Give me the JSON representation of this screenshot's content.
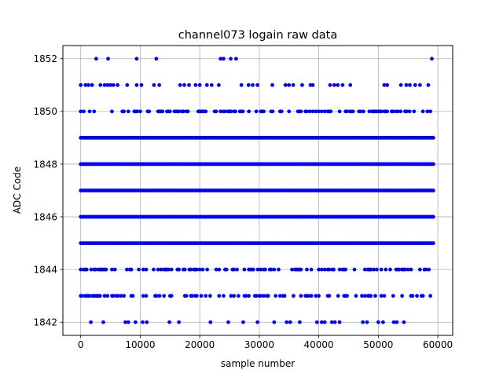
{
  "chart_data": {
    "type": "scatter",
    "title": "channel073 logain raw data",
    "xlabel": "sample number",
    "ylabel": "ADC Code",
    "xlim": [
      -3000,
      62500
    ],
    "ylim": [
      1841.5,
      1852.5
    ],
    "xticks": [
      0,
      10000,
      20000,
      30000,
      40000,
      50000,
      60000
    ],
    "yticks": [
      1842,
      1844,
      1846,
      1848,
      1850,
      1852
    ],
    "grid": true,
    "marker_color": "#0000ff",
    "series": [
      {
        "dense_levels": [
          {
            "y": 1850,
            "x_range": [
              0,
              59400
            ],
            "density": 0.45
          },
          {
            "y": 1849,
            "x_range": [
              0,
              59400
            ],
            "density": 1.0
          },
          {
            "y": 1848,
            "x_range": [
              0,
              59400
            ],
            "density": 1.0
          },
          {
            "y": 1847,
            "x_range": [
              0,
              59400
            ],
            "density": 1.0
          },
          {
            "y": 1846,
            "x_range": [
              0,
              59400
            ],
            "density": 1.0
          },
          {
            "y": 1845,
            "x_range": [
              0,
              59400
            ],
            "density": 1.0
          },
          {
            "y": 1844,
            "x_range": [
              0,
              59400
            ],
            "density": 0.5
          },
          {
            "y": 1843,
            "x_range": [
              0,
              59400
            ],
            "density": 0.3
          }
        ],
        "sparse_points": [
          {
            "y": 1852,
            "x": [
              2600,
              4600,
              9400,
              12700,
              23500,
              24000,
              25200,
              26100,
              59000
            ]
          },
          {
            "y": 1851,
            "x": [
              0,
              800,
              1300,
              1900,
              3300,
              4000,
              4500,
              5000,
              5500,
              6200,
              7800,
              9400,
              10200,
              12300,
              13200,
              16700,
              17400,
              18200,
              19300,
              20000,
              21200,
              22000,
              23200,
              27000,
              28200,
              28900,
              29700,
              32200,
              34400,
              35000,
              35700,
              37200,
              38600,
              39000,
              41900,
              42600,
              43200,
              44000,
              45300,
              51000,
              51500,
              53800,
              54700,
              55300,
              56200,
              57000,
              58400
            ]
          },
          {
            "y": 1842,
            "x": [
              1700,
              3800,
              7500,
              8000,
              9200,
              10400,
              11100,
              14900,
              16500,
              21800,
              24800,
              27300,
              29700,
              32500,
              34600,
              35200,
              36800,
              39700,
              40500,
              41000,
              42200,
              42700,
              43500,
              47400,
              48100,
              50000,
              50800,
              52600,
              53100,
              54300
            ]
          }
        ]
      }
    ]
  }
}
